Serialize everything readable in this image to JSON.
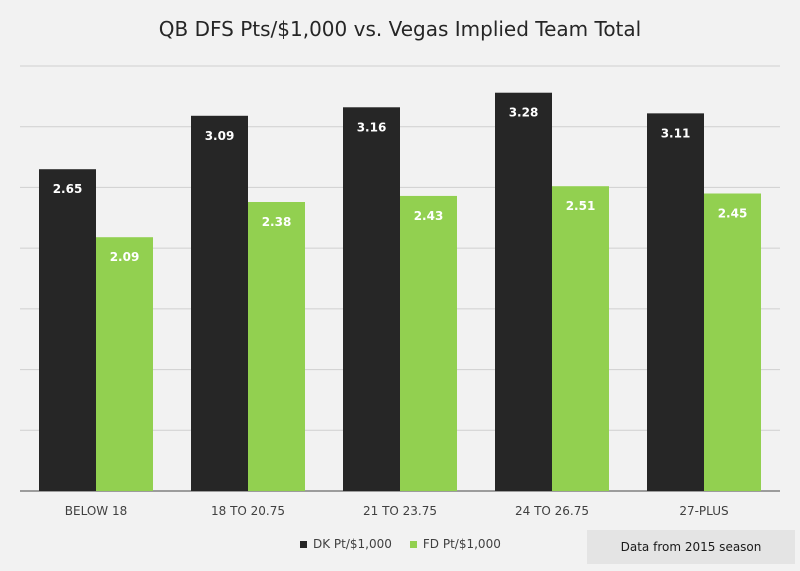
{
  "chart_data": {
    "type": "bar",
    "title": "QB DFS Pts/$1,000 vs. Vegas Implied Team Total",
    "categories": [
      "BELOW 18",
      "18 TO 20.75",
      "21 TO 23.75",
      "24 TO 26.75",
      "27-PLUS"
    ],
    "series": [
      {
        "name": "DK Pt/$1,000",
        "color": "#262626",
        "values": [
          2.65,
          3.09,
          3.16,
          3.28,
          3.11
        ]
      },
      {
        "name": "FD Pt/$1,000",
        "color": "#92d050",
        "values": [
          2.09,
          2.38,
          2.43,
          2.51,
          2.45
        ]
      }
    ],
    "ylim": [
      0,
      3.5
    ],
    "grid": true,
    "legend_position": "bottom",
    "data_labels": true
  },
  "note": "Data from 2015 season"
}
